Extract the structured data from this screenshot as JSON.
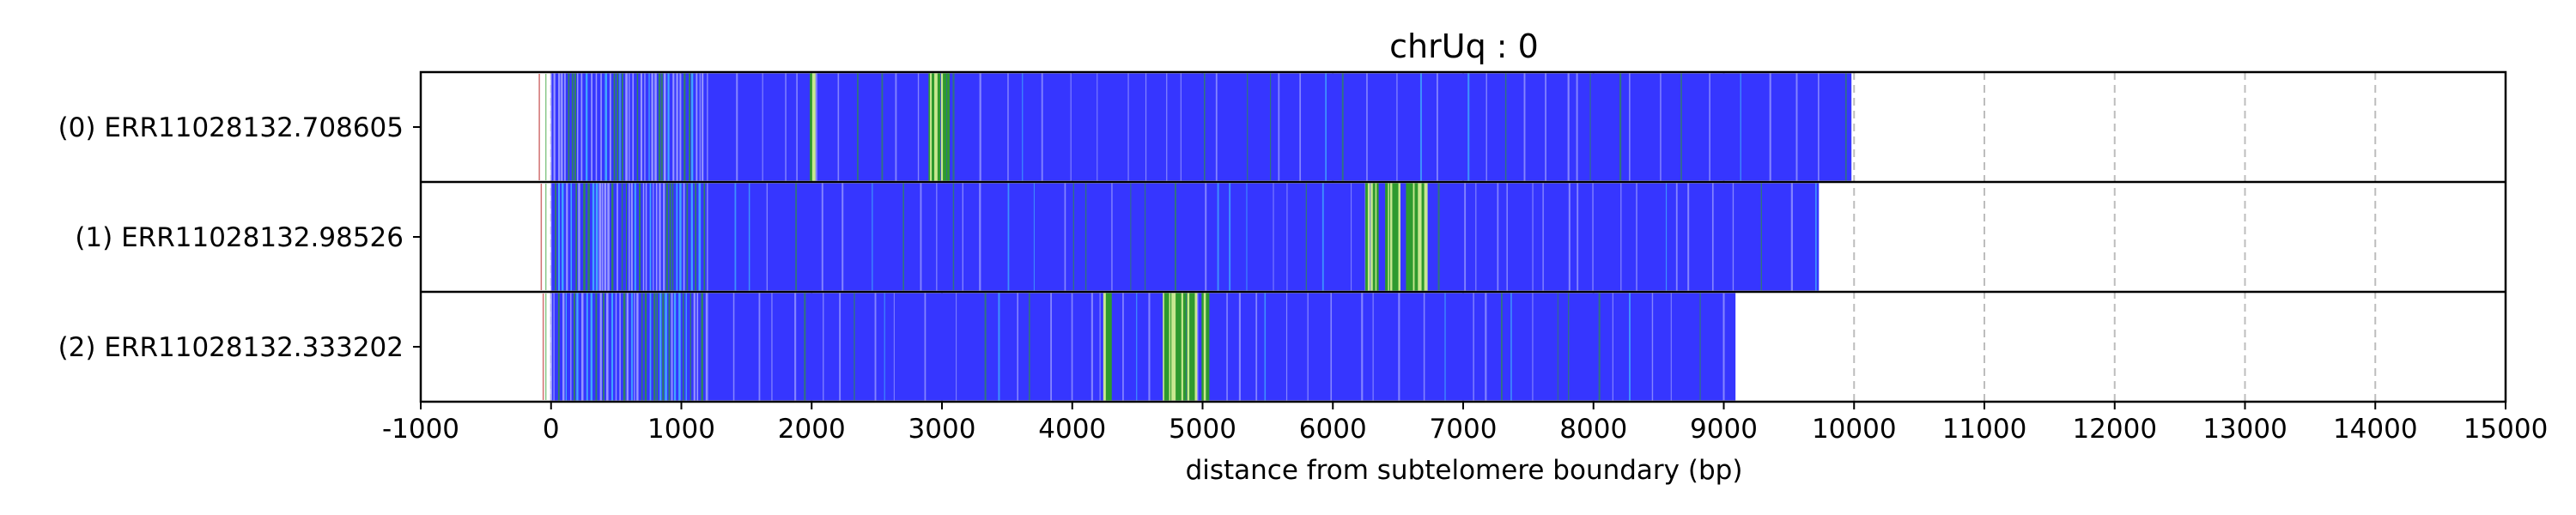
{
  "chart_data": {
    "type": "bar",
    "orientation": "horizontal",
    "title": "chrUq : 0",
    "xlabel": "distance from subtelomere boundary (bp)",
    "ylabel": "",
    "xlim": [
      -1000,
      15000
    ],
    "xticks": [
      -1000,
      0,
      1000,
      2000,
      3000,
      4000,
      5000,
      6000,
      7000,
      8000,
      9000,
      10000,
      11000,
      12000,
      13000,
      14000,
      15000
    ],
    "xtick_labels": [
      "-1000",
      "0",
      "1000",
      "2000",
      "3000",
      "4000",
      "5000",
      "6000",
      "7000",
      "8000",
      "9000",
      "10000",
      "11000",
      "12000",
      "13000",
      "14000",
      "15000"
    ],
    "grid": "vertical dashed lines at major ticks",
    "colors": {
      "main": "#3636ff",
      "accent_green": "#2e9a2e",
      "accent_cyan": "#44ccff",
      "gap": "#b8b8ff"
    },
    "reads": [
      {
        "label": "(0) ERR11028132.708605",
        "start": 0,
        "end": 9980,
        "green_bands": [
          [
            1990,
            2030
          ],
          [
            2900,
            2990
          ],
          [
            3000,
            3060
          ],
          [
            2940,
            2960
          ]
        ]
      },
      {
        "label": "(1) ERR11028132.98526",
        "start": 0,
        "end": 9730,
        "green_bands": [
          [
            6250,
            6350
          ],
          [
            6400,
            6520
          ],
          [
            6560,
            6720
          ]
        ]
      },
      {
        "label": "(2) ERR11028132.333202",
        "start": 0,
        "end": 9090,
        "green_bands": [
          [
            4250,
            4300
          ],
          [
            4700,
            4960
          ],
          [
            5000,
            5050
          ]
        ]
      }
    ]
  }
}
